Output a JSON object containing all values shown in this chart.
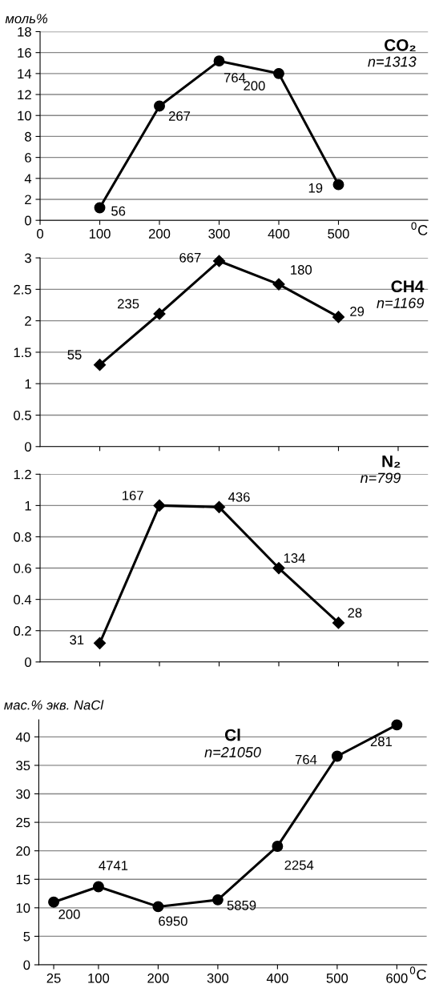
{
  "chart_data": [
    {
      "type": "line",
      "title": "CO₂",
      "subtitle": "n=1313",
      "ylabel": "моль%",
      "xlabel": "$^{0}$C",
      "x": [
        100,
        200,
        300,
        400,
        500
      ],
      "series": [
        {
          "color": "#000000",
          "values": [
            1.2,
            10.9,
            15.2,
            14.0,
            3.4
          ]
        }
      ],
      "value_labels": [
        "56",
        "267",
        "764",
        "200",
        "19"
      ],
      "xlim": [
        0,
        650
      ],
      "xticks": [
        0,
        100,
        200,
        300,
        400,
        500
      ],
      "ylim": [
        0,
        18
      ],
      "yticks": [
        0,
        2,
        4,
        6,
        8,
        10,
        12,
        14,
        16,
        18
      ],
      "grid": "y",
      "marker": "circle",
      "line_style": "solid"
    },
    {
      "type": "line",
      "title": "CH4",
      "subtitle": "n=1169",
      "x": [
        100,
        200,
        300,
        400,
        500
      ],
      "series": [
        {
          "color": "#000000",
          "values": [
            1.3,
            2.11,
            2.95,
            2.58,
            2.06
          ]
        }
      ],
      "value_labels": [
        "55",
        "235",
        "667",
        "180",
        "29"
      ],
      "xlim": [
        0,
        650
      ],
      "xticks": [
        {
          "value": 100,
          "label": null
        },
        {
          "value": 200,
          "label": null
        },
        {
          "value": 300,
          "label": null
        },
        {
          "value": 400,
          "label": null
        },
        {
          "value": 500,
          "label": null
        },
        {
          "value": 600,
          "label": null
        }
      ],
      "ylim": [
        0,
        3
      ],
      "yticks": [
        0,
        0.5,
        1,
        1.5,
        2,
        2.5,
        3
      ],
      "tick_labels": "y",
      "grid": "y",
      "marker": "diamond",
      "line_style": "solid"
    },
    {
      "type": "line",
      "title": "N₂",
      "subtitle": "n=799",
      "x": [
        100,
        200,
        300,
        400,
        500
      ],
      "series": [
        {
          "color": "#000000",
          "values": [
            0.12,
            1.0,
            0.99,
            0.6,
            0.25
          ]
        }
      ],
      "value_labels": [
        "31",
        "167",
        "436",
        "134",
        "28"
      ],
      "xlim": [
        0,
        650
      ],
      "xticks": [
        {
          "value": 100,
          "label": null
        },
        {
          "value": 200,
          "label": null
        },
        {
          "value": 300,
          "label": null
        },
        {
          "value": 400,
          "label": null
        },
        {
          "value": 500,
          "label": null
        },
        {
          "value": 600,
          "label": null
        }
      ],
      "ylim": [
        0,
        1.2
      ],
      "yticks": [
        0,
        0.2,
        0.4,
        0.6,
        0.8,
        1,
        1.2
      ],
      "tick_labels": "y",
      "grid": "y",
      "marker": "diamond",
      "line_style": "solid"
    },
    {
      "type": "line",
      "title": "Cl",
      "subtitle": "n=21050",
      "ylabel": "мас.% экв. NaCl",
      "xlabel": "$^{0}$C",
      "x": [
        25,
        100,
        200,
        300,
        400,
        500,
        600
      ],
      "series": [
        {
          "color": "#000000",
          "values": [
            11.0,
            13.7,
            10.2,
            11.4,
            20.8,
            36.6,
            42.1
          ]
        }
      ],
      "value_labels": [
        "200",
        "4741",
        "6950",
        "5859",
        "2254",
        "764",
        "281"
      ],
      "xlim": [
        0,
        650
      ],
      "xticks": [
        25,
        100,
        200,
        300,
        400,
        500,
        600
      ],
      "ylim": [
        0,
        43
      ],
      "yticks": [
        0,
        5,
        10,
        15,
        20,
        25,
        30,
        35,
        40
      ],
      "grid": "y",
      "marker": "circle",
      "line_style": "solid"
    }
  ]
}
